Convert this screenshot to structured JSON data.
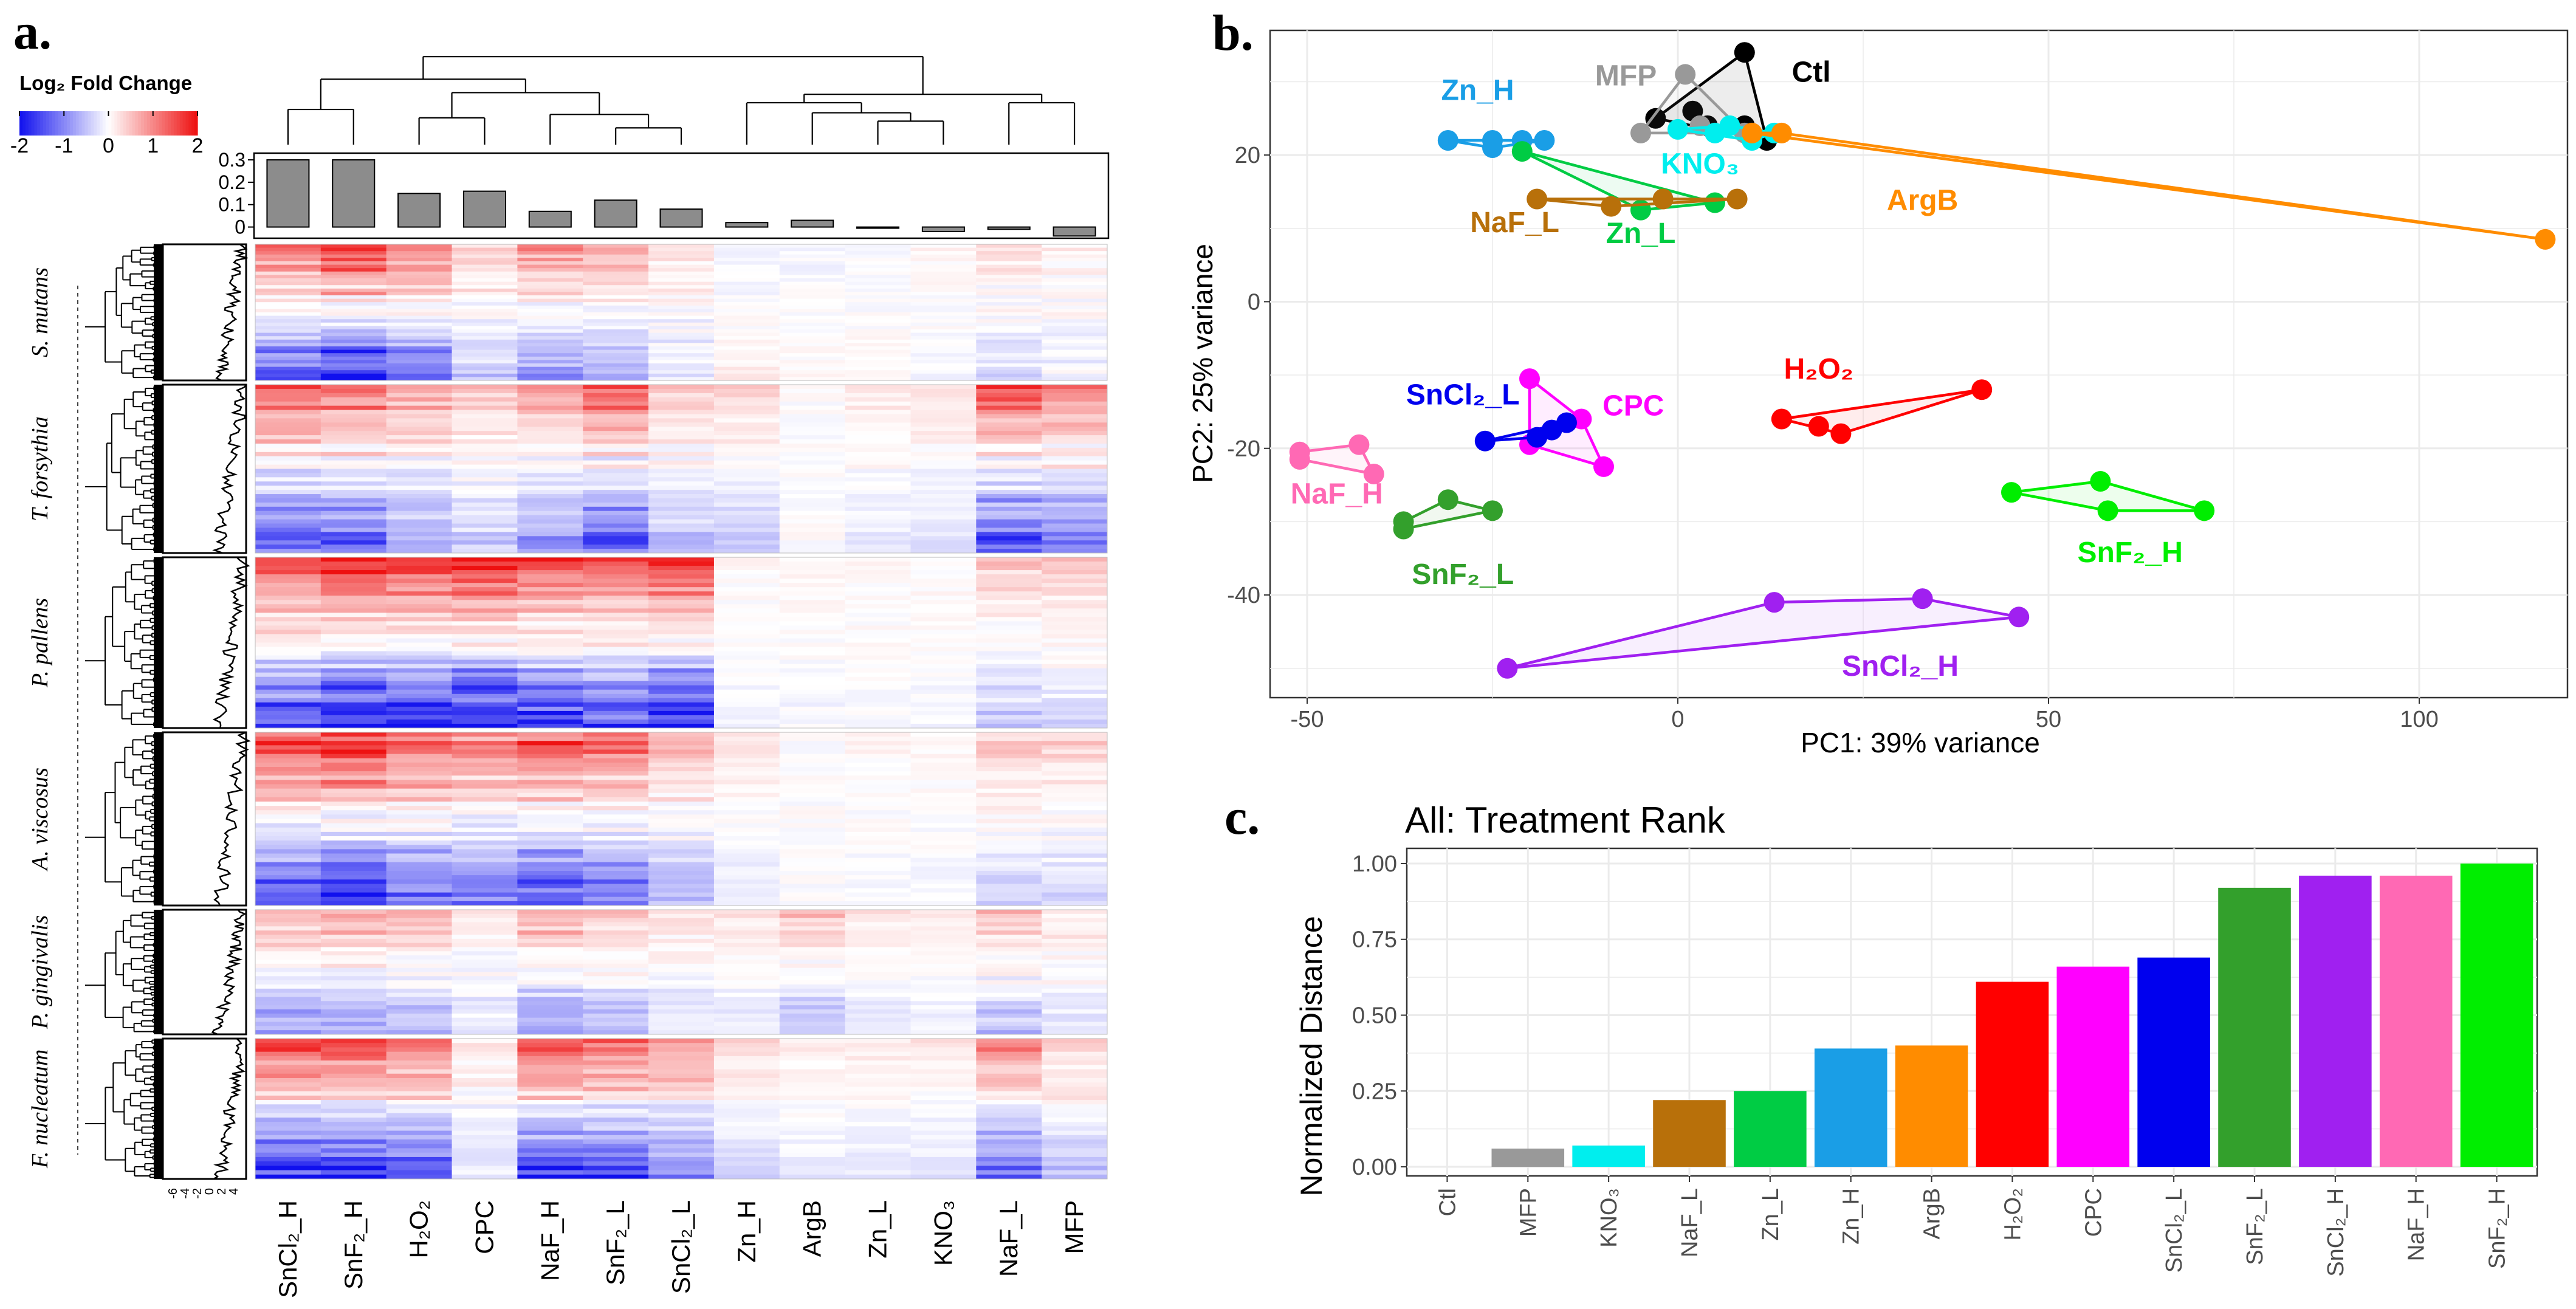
{
  "panels": {
    "a": "a.",
    "b": "b.",
    "c": "c."
  },
  "colors": {
    "heat_low": "#1010ee",
    "heat_mid": "#ffffff",
    "heat_high": "#ee1010",
    "bar_fill": "#8c8c8c",
    "grid": "#ebebeb",
    "axis": "#444444"
  },
  "chart_data": [
    {
      "id": "heatmap",
      "type": "heatmap",
      "legend_title": "Log₂ Fold Change",
      "legend_ticks": [
        "-2",
        "-1",
        "0",
        "1",
        "2"
      ],
      "legend_range": [
        -2,
        2
      ],
      "columns": [
        "SnCl₂_H",
        "SnF₂_H",
        "H₂O₂",
        "CPC",
        "NaF_H",
        "SnF₂_L",
        "SnCl₂_L",
        "Zn_H",
        "ArgB",
        "Zn_L",
        "KNO₃",
        "NaF_L",
        "MFP"
      ],
      "top_bar": {
        "type": "bar",
        "values": [
          0.3,
          0.3,
          0.15,
          0.16,
          0.07,
          0.12,
          0.08,
          0.02,
          0.03,
          0.0,
          -0.02,
          -0.01,
          -0.04
        ],
        "ylim": [
          -0.05,
          0.33
        ],
        "ticks": [
          "0.3",
          "0.2",
          "0.1",
          "0"
        ]
      },
      "row_bar_ticks": [
        "-6",
        "-4",
        "-2",
        "0",
        "2",
        "4"
      ],
      "row_groups": [
        {
          "name": "S. mutans",
          "rows": 40,
          "profile": [
            0.55,
            0.7,
            0.45,
            0.2,
            0.35,
            0.3,
            0.1,
            -0.1,
            -0.05,
            -0.05,
            0.05,
            0.1,
            0.05
          ]
        },
        {
          "name": "T. forsythia",
          "rows": 40,
          "profile": [
            0.55,
            0.5,
            0.3,
            0.2,
            0.35,
            0.55,
            0.2,
            0.3,
            0.0,
            0.15,
            0.2,
            0.6,
            0.45
          ]
        },
        {
          "name": "P. pallens",
          "rows": 40,
          "profile": [
            0.6,
            0.8,
            0.7,
            0.8,
            0.65,
            0.6,
            0.7,
            0.05,
            0.05,
            0.05,
            0.05,
            0.2,
            0.15
          ]
        },
        {
          "name": "A. viscosus",
          "rows": 40,
          "profile": [
            0.6,
            0.7,
            0.5,
            0.5,
            0.6,
            0.5,
            0.25,
            0.15,
            0.0,
            0.05,
            0.05,
            0.15,
            0.15
          ]
        },
        {
          "name": "P. gingivalis",
          "rows": 30,
          "profile": [
            0.3,
            0.3,
            0.25,
            0.1,
            0.3,
            0.2,
            0.1,
            0.15,
            0.4,
            0.15,
            0.1,
            0.2,
            0.1
          ]
        },
        {
          "name": "F. nucleatum",
          "rows": 32,
          "profile": [
            0.7,
            0.7,
            0.55,
            0.1,
            0.65,
            0.6,
            0.4,
            0.25,
            0.1,
            0.15,
            0.15,
            0.45,
            0.2
          ]
        }
      ]
    },
    {
      "id": "pca",
      "type": "scatter",
      "xlabel": "PC1: 39% variance",
      "ylabel": "PC2: 25% variance",
      "xlim": [
        -55,
        120
      ],
      "ylim": [
        -54,
        37
      ],
      "xticks": [
        -50,
        0,
        50,
        100
      ],
      "yticks": [
        -40,
        -20,
        0,
        20
      ],
      "groups": [
        {
          "name": "Ctl",
          "color": "#000000",
          "label_pos": [
            18,
            30
          ],
          "points": [
            [
              9,
              34
            ],
            [
              2,
              26
            ],
            [
              4,
              24
            ],
            [
              9,
              24
            ],
            [
              12,
              22
            ],
            [
              -3,
              25
            ]
          ]
        },
        {
          "name": "MFP",
          "color": "#999999",
          "label_pos": [
            -7,
            29.5
          ],
          "points": [
            [
              1,
              31
            ],
            [
              -5,
              23
            ],
            [
              3,
              24
            ],
            [
              9,
              23
            ]
          ]
        },
        {
          "name": "KNO₃",
          "color": "#00eeee",
          "label_pos": [
            3,
            17.5
          ],
          "points": [
            [
              0,
              23.5
            ],
            [
              5,
              23
            ],
            [
              7,
              24
            ],
            [
              10,
              22
            ],
            [
              13,
              23
            ]
          ]
        },
        {
          "name": "Zn_H",
          "color": "#1a9ee6",
          "label_pos": [
            -27,
            27.5
          ],
          "points": [
            [
              -31,
              22
            ],
            [
              -25,
              22
            ],
            [
              -21,
              22
            ],
            [
              -18,
              22
            ],
            [
              -25,
              21
            ]
          ]
        },
        {
          "name": "Zn_L",
          "color": "#00cc44",
          "label_pos": [
            -5,
            8
          ],
          "points": [
            [
              -21,
              20.5
            ],
            [
              -5,
              12.5
            ],
            [
              5,
              13.5
            ]
          ]
        },
        {
          "name": "NaF_L",
          "color": "#b8700a",
          "label_pos": [
            -22,
            9.5
          ],
          "points": [
            [
              -19,
              14
            ],
            [
              -9,
              13
            ],
            [
              -2,
              14
            ],
            [
              8,
              14
            ]
          ]
        },
        {
          "name": "ArgB",
          "color": "#ff8c00",
          "label_pos": [
            33,
            12.5
          ],
          "points": [
            [
              10,
              23
            ],
            [
              14,
              23
            ],
            [
              117,
              8.5
            ]
          ]
        },
        {
          "name": "H₂O₂",
          "color": "#ff0000",
          "label_pos": [
            19,
            -10.5
          ],
          "points": [
            [
              14,
              -16
            ],
            [
              19,
              -17
            ],
            [
              22,
              -18
            ],
            [
              41,
              -12
            ]
          ]
        },
        {
          "name": "CPC",
          "color": "#ff00ff",
          "label_pos": [
            -6,
            -15.5
          ],
          "points": [
            [
              -20,
              -10.5
            ],
            [
              -13,
              -16
            ],
            [
              -20,
              -19.5
            ],
            [
              -10,
              -22.5
            ]
          ]
        },
        {
          "name": "SnCl₂_L",
          "color": "#0000ee",
          "label_pos": [
            -29,
            -14
          ],
          "points": [
            [
              -26,
              -19
            ],
            [
              -19,
              -18.5
            ],
            [
              -17,
              -17.5
            ],
            [
              -15,
              -16.5
            ]
          ]
        },
        {
          "name": "NaF_H",
          "color": "#ff69b4",
          "label_pos": [
            -46,
            -27.5
          ],
          "points": [
            [
              -51,
              -20.5
            ],
            [
              -51,
              -21.5
            ],
            [
              -43,
              -19.5
            ],
            [
              -41,
              -23.5
            ]
          ]
        },
        {
          "name": "SnF₂_L",
          "color": "#33a02c",
          "label_pos": [
            -29,
            -38.5
          ],
          "points": [
            [
              -37,
              -31
            ],
            [
              -37,
              -30
            ],
            [
              -31,
              -27
            ],
            [
              -25,
              -28.5
            ]
          ]
        },
        {
          "name": "SnF₂_H",
          "color": "#00ee00",
          "label_pos": [
            61,
            -35.5
          ],
          "points": [
            [
              45,
              -26
            ],
            [
              57,
              -24.5
            ],
            [
              58,
              -28.5
            ],
            [
              71,
              -28.5
            ]
          ]
        },
        {
          "name": "SnCl₂_H",
          "color": "#a020f0",
          "label_pos": [
            30,
            -51
          ],
          "points": [
            [
              -23,
              -50
            ],
            [
              13,
              -41
            ],
            [
              33,
              -40.5
            ],
            [
              46,
              -43
            ]
          ]
        }
      ]
    },
    {
      "id": "rank",
      "type": "bar",
      "title": "All: Treatment Rank",
      "xlabel": "",
      "ylabel": "Normalized Distance",
      "ylim": [
        -0.03,
        1.05
      ],
      "yticks": [
        "0.00",
        "0.25",
        "0.50",
        "0.75",
        "1.00"
      ],
      "categories": [
        "Ctl",
        "MFP",
        "KNO₃",
        "NaF_L",
        "Zn_L",
        "Zn_H",
        "ArgB",
        "H₂O₂",
        "CPC",
        "SnCl₂_L",
        "SnF₂_L",
        "SnCl₂_H",
        "NaF_H",
        "SnF₂_H"
      ],
      "values": [
        0.0,
        0.06,
        0.07,
        0.22,
        0.25,
        0.39,
        0.4,
        0.61,
        0.66,
        0.69,
        0.92,
        0.96,
        0.96,
        1.0
      ],
      "bar_colors": [
        "#000000",
        "#999999",
        "#00eeee",
        "#b8700a",
        "#00cc44",
        "#1a9ee6",
        "#ff8c00",
        "#ff0000",
        "#ff00ff",
        "#0000ee",
        "#33a02c",
        "#a020f0",
        "#ff69b4",
        "#00ee00"
      ]
    }
  ]
}
